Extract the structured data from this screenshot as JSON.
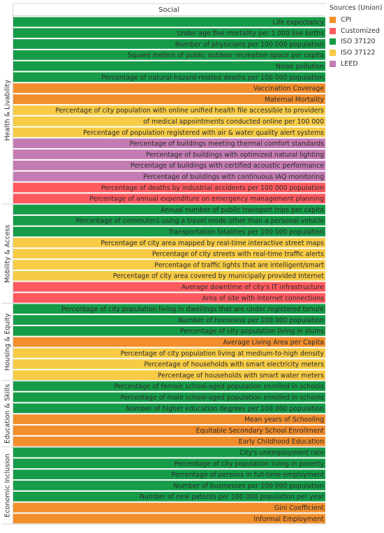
{
  "chart_data": {
    "type": "bar",
    "orientation": "horizontal",
    "column_header": "Social",
    "legend": {
      "title": "Sources (Union)",
      "placement": "right",
      "items": [
        {
          "label": "CPI",
          "color": "#f28e2b"
        },
        {
          "label": "Customized",
          "color": "#ff5a5f"
        },
        {
          "label": "ISO 37120",
          "color": "#169b48"
        },
        {
          "label": "ISO 37122",
          "color": "#f7cb45"
        },
        {
          "label": "LEED",
          "color": "#c47bb3"
        }
      ]
    },
    "groups": [
      {
        "name": "Health & Livability",
        "rows": [
          {
            "label": "Life expectancy",
            "source": "ISO 37120"
          },
          {
            "label": "Under age five mortality per 1 000 live births",
            "source": "ISO 37120"
          },
          {
            "label": "Number of physicians per 100 000 population",
            "source": "ISO 37120"
          },
          {
            "label": "Square meters of public outdoor recreation space per capita",
            "source": "ISO 37120"
          },
          {
            "label": "Noise pollution",
            "source": "ISO 37120"
          },
          {
            "label": "Percentage of natural-hazard-related deaths per 100 000 population",
            "source": "ISO 37120"
          },
          {
            "label": "Vaccination Coverage",
            "source": "CPI"
          },
          {
            "label": "Maternal Mortality",
            "source": "CPI"
          },
          {
            "label": "Percentage of city population with online unified health file accessible to providers",
            "source": "ISO 37122"
          },
          {
            "label": "of medical appointments conducted online per 100 000",
            "source": "ISO 37122"
          },
          {
            "label": "Percentage of population registered with air & water quality alert systems",
            "source": "ISO 37122"
          },
          {
            "label": "Percentage of buildings meeting thermal comfort standards",
            "source": "LEED"
          },
          {
            "label": "Percentage of buildings with optimized natural lighting",
            "source": "LEED"
          },
          {
            "label": "Percentage of buildings with certified acoustic performance",
            "source": "LEED"
          },
          {
            "label": "Percentage of buildings with continuous IAQ monitoring",
            "source": "LEED"
          },
          {
            "label": "Percentage of deaths by industrial accidents per 100 000 population",
            "source": "Customized"
          },
          {
            "label": "Percentage of annual expenditure on emergency management planning",
            "source": "Customized"
          }
        ]
      },
      {
        "name": "Mobility & Access",
        "rows": [
          {
            "label": "Annual number of public transport trips per capita",
            "source": "ISO 37120"
          },
          {
            "label": "Percentage of commuters using a travel mode other than a personal vehicle",
            "source": "ISO 37120"
          },
          {
            "label": "Transportation fatalities per 100 000 population",
            "source": "ISO 37120"
          },
          {
            "label": "Percentage of city area mapped by real-time interactive street maps",
            "source": "ISO 37122"
          },
          {
            "label": "Percentage of city streets with real-time traffic alerts",
            "source": "ISO 37122"
          },
          {
            "label": "Percentage of traffic lights that are intelligent/smart",
            "source": "ISO 37122"
          },
          {
            "label": "Percentage of city area covered by municipally provided Internet",
            "source": "ISO 37122"
          },
          {
            "label": "Average downtime of city's IT infrastructure",
            "source": "Customized"
          },
          {
            "label": "Area of site with internet connections",
            "source": "Customized"
          }
        ]
      },
      {
        "name": "Housing & Equity",
        "rows": [
          {
            "label": "Percentage of city population living in dwellings that are under registered tenure",
            "source": "ISO 37120"
          },
          {
            "label": "Number of homeless per 100 000 population",
            "source": "ISO 37120"
          },
          {
            "label": "Percentage of city population living in slums",
            "source": "ISO 37120"
          },
          {
            "label": "Average Living Area per Capita",
            "source": "CPI"
          },
          {
            "label": "Percentage of city population living at medium-to-high density",
            "source": "ISO 37122"
          },
          {
            "label": "Percentage of households with smart electricity meters",
            "source": "ISO 37122"
          },
          {
            "label": "Percentage of households with smart water meters",
            "source": "ISO 37122"
          }
        ]
      },
      {
        "name": "Education & Skills",
        "rows": [
          {
            "label": "Percentage of female school-aged population enrolled in schools",
            "source": "ISO 37120"
          },
          {
            "label": "Percentage of male school-aged population enrolled in schools",
            "source": "ISO 37120"
          },
          {
            "label": "Number of higher education degrees per 100 000 population",
            "source": "ISO 37120"
          },
          {
            "label": "Mean years of Schooling",
            "source": "CPI"
          },
          {
            "label": "Equitable Secondary School Enrollment",
            "source": "CPI"
          },
          {
            "label": "Early Childhood Education",
            "source": "CPI"
          }
        ]
      },
      {
        "name": "Economic Inclusion",
        "rows": [
          {
            "label": "City's unemployment rate",
            "source": "ISO 37120"
          },
          {
            "label": "Percentage of city population living in poverty",
            "source": "ISO 37120"
          },
          {
            "label": "Percentage of persons in full-time employment",
            "source": "ISO 37120"
          },
          {
            "label": "Number of businesses per 100 000 population",
            "source": "ISO 37120"
          },
          {
            "label": "Number of new patents per 100 000 population per year",
            "source": "ISO 37120"
          },
          {
            "label": "Gini Coefficient",
            "source": "CPI"
          },
          {
            "label": "Informal Employment",
            "source": "CPI"
          }
        ]
      }
    ]
  }
}
